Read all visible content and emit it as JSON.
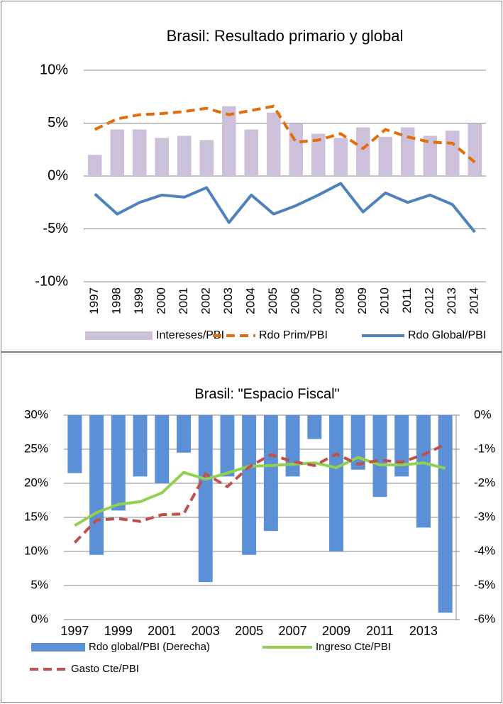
{
  "chart_data": [
    {
      "type": "combo",
      "title": "Brasil: Resultado primario y global",
      "categories": [
        "1997",
        "1998",
        "1999",
        "2000",
        "2001",
        "2002",
        "2003",
        "2004",
        "2005",
        "2006",
        "2007",
        "2008",
        "2009",
        "2010",
        "2011",
        "2012",
        "2013",
        "2014"
      ],
      "series": [
        {
          "name": "Intereses/PBI",
          "type": "bar",
          "color": "#ccc0da",
          "values": [
            2.0,
            4.4,
            4.4,
            3.6,
            3.8,
            3.4,
            6.6,
            4.4,
            6.0,
            5.0,
            4.0,
            3.6,
            4.6,
            3.7,
            4.6,
            3.8,
            4.3,
            5.0
          ]
        },
        {
          "name": "Rdo Prim/PBI",
          "type": "line",
          "line_style": "dashed",
          "color": "#e46c0a",
          "values": [
            4.4,
            5.4,
            5.8,
            5.9,
            6.1,
            6.4,
            5.8,
            6.2,
            6.6,
            3.2,
            3.4,
            4.0,
            2.6,
            4.4,
            3.7,
            3.2,
            3.1,
            1.3
          ]
        },
        {
          "name": "Rdo Global/PBI",
          "type": "line",
          "line_style": "solid",
          "color": "#4f81bd",
          "values": [
            -1.7,
            -3.6,
            -2.5,
            -1.8,
            -2.0,
            -1.1,
            -4.4,
            -1.8,
            -3.6,
            -2.8,
            -1.8,
            -0.7,
            -3.4,
            -1.6,
            -2.5,
            -1.8,
            -2.7,
            -5.3
          ]
        }
      ],
      "ylim": [
        -10,
        10
      ],
      "yticks": [
        {
          "value": -10,
          "label": "-10%"
        },
        {
          "value": -5,
          "label": "-5%"
        },
        {
          "value": 0,
          "label": "0%"
        },
        {
          "value": 5,
          "label": "5%"
        },
        {
          "value": 10,
          "label": "10%"
        }
      ],
      "grid": true,
      "legend": "bottom"
    },
    {
      "type": "combo",
      "title": "Brasil: \"Espacio Fiscal\"",
      "categories": [
        "1997",
        null,
        "1999",
        null,
        "2001",
        null,
        "2003",
        null,
        "2005",
        null,
        "2007",
        null,
        "2009",
        null,
        "2011",
        null,
        "2013",
        null
      ],
      "series": [
        {
          "name": "Rdo global/PBI (Derecha)",
          "type": "bar",
          "axis": "y2",
          "color": "#5b8fd6",
          "values": [
            -1.7,
            -4.1,
            -2.8,
            -1.8,
            -2.0,
            -1.1,
            -4.9,
            -1.8,
            -4.1,
            -3.4,
            -1.8,
            -0.7,
            -4.0,
            -1.6,
            -2.4,
            -1.8,
            -3.3,
            -5.8
          ]
        },
        {
          "name": "Ingreso Cte/PBI",
          "type": "line",
          "line_style": "solid",
          "color": "#92d050",
          "values": [
            13.8,
            15.7,
            16.9,
            17.3,
            18.6,
            21.6,
            20.6,
            21.5,
            22.5,
            22.6,
            22.8,
            23.0,
            22.3,
            23.8,
            22.7,
            22.7,
            23.0,
            22.2
          ]
        },
        {
          "name": "Gasto Cte/PBI",
          "type": "line",
          "line_style": "dashed",
          "color": "#c0504d",
          "values": [
            11.3,
            14.6,
            14.8,
            14.4,
            15.4,
            15.5,
            21.4,
            19.5,
            22.4,
            24.2,
            23.2,
            22.6,
            24.3,
            22.8,
            23.4,
            23.1,
            24.2,
            25.7
          ]
        }
      ],
      "ylim": [
        0,
        30
      ],
      "yticks": [
        {
          "value": 0,
          "label": "0%"
        },
        {
          "value": 5,
          "label": "5%"
        },
        {
          "value": 10,
          "label": "10%"
        },
        {
          "value": 15,
          "label": "15%"
        },
        {
          "value": 20,
          "label": "20%"
        },
        {
          "value": 25,
          "label": "25%"
        },
        {
          "value": 30,
          "label": "30%"
        }
      ],
      "y2lim": [
        -6,
        0
      ],
      "y2ticks": [
        {
          "value": -6,
          "label": "-6%"
        },
        {
          "value": -5,
          "label": "-5%"
        },
        {
          "value": -4,
          "label": "-4%"
        },
        {
          "value": -3,
          "label": "-3%"
        },
        {
          "value": -2,
          "label": "-2%"
        },
        {
          "value": -1,
          "label": "-1%"
        },
        {
          "value": 0,
          "label": "0%"
        }
      ],
      "grid": true,
      "legend": "bottom"
    }
  ]
}
